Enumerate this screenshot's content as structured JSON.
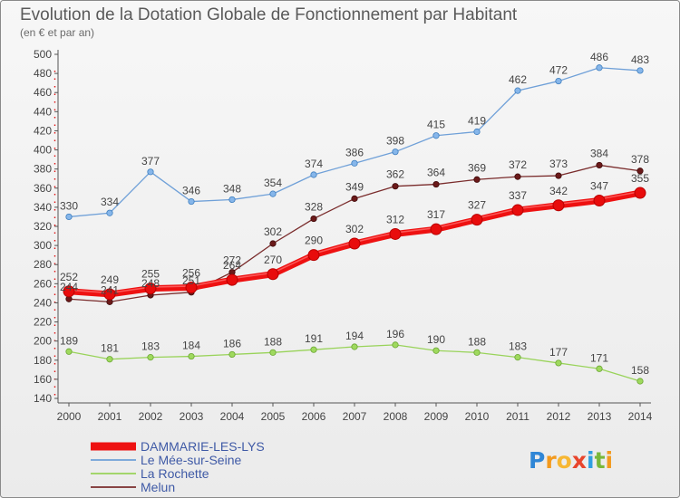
{
  "chart_data": {
    "type": "line",
    "title": "Evolution de la Dotation Globale de Fonctionnement par Habitant",
    "subtitle": "(en € et par an)",
    "categories": [
      "2000",
      "2001",
      "2002",
      "2003",
      "2004",
      "2005",
      "2006",
      "2007",
      "2008",
      "2009",
      "2010",
      "2011",
      "2012",
      "2013",
      "2014"
    ],
    "ylim": [
      140,
      500
    ],
    "yticks": [
      140,
      160,
      180,
      200,
      220,
      240,
      260,
      280,
      300,
      320,
      340,
      360,
      380,
      400,
      420,
      440,
      460,
      480,
      500
    ],
    "series": [
      {
        "name": "DAMMARIE-LES-LYS",
        "values": [
          252,
          249,
          255,
          256,
          264,
          270,
          290,
          302,
          312,
          317,
          327,
          337,
          342,
          347,
          355
        ],
        "color": "#ee1111",
        "marker_color": "#e80c0c"
      },
      {
        "name": "Le Mée-sur-Seine",
        "values": [
          330,
          334,
          377,
          346,
          348,
          354,
          374,
          386,
          398,
          415,
          419,
          462,
          472,
          486,
          483
        ],
        "color": "#6fa0d8",
        "marker_color": "#86b6ea"
      },
      {
        "name": "La Rochette",
        "values": [
          189,
          181,
          183,
          184,
          186,
          188,
          191,
          194,
          196,
          190,
          188,
          183,
          177,
          171,
          158
        ],
        "color": "#99d35a",
        "marker_color": "#9fd95e"
      },
      {
        "name": "Melun",
        "values": [
          244,
          241,
          248,
          251,
          272,
          302,
          328,
          349,
          362,
          364,
          369,
          372,
          373,
          384,
          378
        ],
        "color": "#7a2c2c",
        "marker_color": "#6b1a1a"
      }
    ]
  },
  "logo": {
    "text": "Proxiti",
    "colors": [
      "#2f86d6",
      "#f39a1e",
      "#f7b733",
      "#e8452c",
      "#2f9fe0",
      "#79b83a",
      "#f39a1e"
    ]
  }
}
